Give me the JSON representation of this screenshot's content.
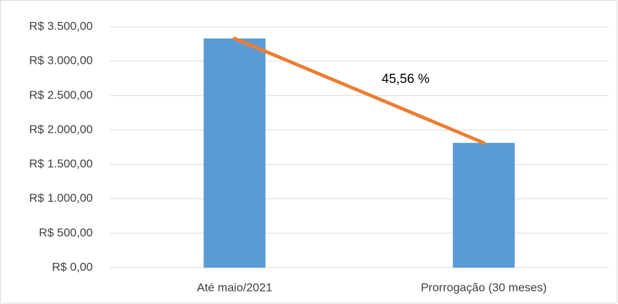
{
  "chart_data": {
    "type": "bar",
    "categories": [
      "Até maio/2021",
      "Prorrogação (30 meses)"
    ],
    "series": [
      {
        "type": "bar",
        "color": "#5b9bd5",
        "values": [
          3330,
          1813
        ]
      },
      {
        "type": "line",
        "color": "#ed7d31",
        "values": [
          3330,
          1813
        ]
      }
    ],
    "annotation": "45,56 %",
    "ylim": [
      0,
      3500
    ],
    "yticks": [
      {
        "value": 0,
        "label": "R$ 0,00"
      },
      {
        "value": 500,
        "label": "R$ 500,00"
      },
      {
        "value": 1000,
        "label": "R$ 1.000,00"
      },
      {
        "value": 1500,
        "label": "R$ 1.500,00"
      },
      {
        "value": 2000,
        "label": "R$ 2.000,00"
      },
      {
        "value": 2500,
        "label": "R$ 2.500,00"
      },
      {
        "value": 3000,
        "label": "R$ 3.000,00"
      },
      {
        "value": 3500,
        "label": "R$ 3.500,00"
      }
    ],
    "grid": true
  }
}
